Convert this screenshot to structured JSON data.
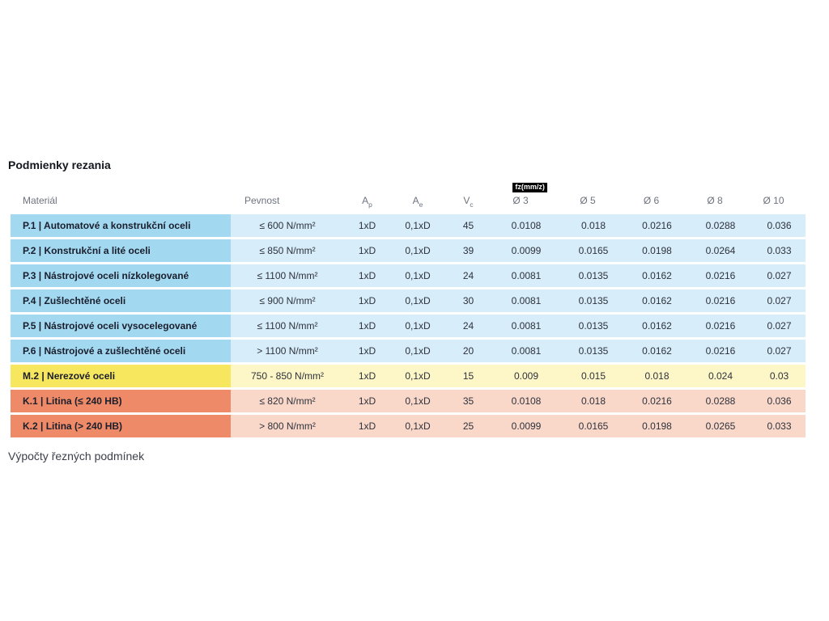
{
  "title": "Podmienky rezania",
  "fz_badge": "fz(mm/z)",
  "footer": {
    "text": "Výpočty řezných podmínek"
  },
  "colors": {
    "blue_material": "#a2d8f0",
    "blue_value": "#d7edf9",
    "yellow_material": "#f6e75e",
    "yellow_value": "#fdf6c6",
    "orange_material": "#ee8a67",
    "orange_value": "#f9d8c9",
    "badge_bg": "#000000",
    "badge_text": "#ffffff",
    "header_text": "#6d737e"
  },
  "table": {
    "columns": [
      {
        "key": "material",
        "label": "Materiál"
      },
      {
        "key": "pevnost",
        "label": "Pevnost"
      },
      {
        "key": "ap",
        "label": "A",
        "sub": "p"
      },
      {
        "key": "ae",
        "label": "A",
        "sub": "e"
      },
      {
        "key": "vc",
        "label": "V",
        "sub": "c"
      },
      {
        "key": "d3",
        "label": "Ø 3",
        "badge": true
      },
      {
        "key": "d5",
        "label": "Ø 5"
      },
      {
        "key": "d6",
        "label": "Ø 6"
      },
      {
        "key": "d8",
        "label": "Ø 8"
      },
      {
        "key": "d10",
        "label": "Ø 10"
      }
    ],
    "rows": [
      {
        "color": "blue",
        "material": "P.1 | Automatové a konstrukční oceli",
        "pevnost": "≤ 600 N/mm²",
        "ap": "1xD",
        "ae": "0,1xD",
        "vc": "45",
        "d3": "0.0108",
        "d5": "0.018",
        "d6": "0.0216",
        "d8": "0.0288",
        "d10": "0.036"
      },
      {
        "color": "blue",
        "material": "P.2 | Konstrukční a lité oceli",
        "pevnost": "≤ 850 N/mm²",
        "ap": "1xD",
        "ae": "0,1xD",
        "vc": "39",
        "d3": "0.0099",
        "d5": "0.0165",
        "d6": "0.0198",
        "d8": "0.0264",
        "d10": "0.033"
      },
      {
        "color": "blue",
        "material": "P.3 | Nástrojové oceli nízkolegované",
        "pevnost": "≤ 1100 N/mm²",
        "ap": "1xD",
        "ae": "0,1xD",
        "vc": "24",
        "d3": "0.0081",
        "d5": "0.0135",
        "d6": "0.0162",
        "d8": "0.0216",
        "d10": "0.027"
      },
      {
        "color": "blue",
        "material": "P.4 | Zušlechtěné oceli",
        "pevnost": "≤ 900 N/mm²",
        "ap": "1xD",
        "ae": "0,1xD",
        "vc": "30",
        "d3": "0.0081",
        "d5": "0.0135",
        "d6": "0.0162",
        "d8": "0.0216",
        "d10": "0.027"
      },
      {
        "color": "blue",
        "material": "P.5 | Nástrojové oceli vysocelegované",
        "pevnost": "≤ 1100 N/mm²",
        "ap": "1xD",
        "ae": "0,1xD",
        "vc": "24",
        "d3": "0.0081",
        "d5": "0.0135",
        "d6": "0.0162",
        "d8": "0.0216",
        "d10": "0.027"
      },
      {
        "color": "blue",
        "material": "P.6 | Nástrojové a zušlechtěné oceli",
        "pevnost": "> 1100 N/mm²",
        "ap": "1xD",
        "ae": "0,1xD",
        "vc": "20",
        "d3": "0.0081",
        "d5": "0.0135",
        "d6": "0.0162",
        "d8": "0.0216",
        "d10": "0.027"
      },
      {
        "color": "yellow",
        "material": "M.2 | Nerezové oceli",
        "pevnost": "750 - 850 N/mm²",
        "ap": "1xD",
        "ae": "0,1xD",
        "vc": "15",
        "d3": "0.009",
        "d5": "0.015",
        "d6": "0.018",
        "d8": "0.024",
        "d10": "0.03"
      },
      {
        "color": "orange",
        "material": "K.1 | Litina (≤ 240 HB)",
        "pevnost": "≤ 820 N/mm²",
        "ap": "1xD",
        "ae": "0,1xD",
        "vc": "35",
        "d3": "0.0108",
        "d5": "0.018",
        "d6": "0.0216",
        "d8": "0.0288",
        "d10": "0.036"
      },
      {
        "color": "orange",
        "material": "K.2 | Litina (> 240 HB)",
        "pevnost": "> 800 N/mm²",
        "ap": "1xD",
        "ae": "0,1xD",
        "vc": "25",
        "d3": "0.0099",
        "d5": "0.0165",
        "d6": "0.0198",
        "d8": "0.0265",
        "d10": "0.033"
      }
    ]
  }
}
